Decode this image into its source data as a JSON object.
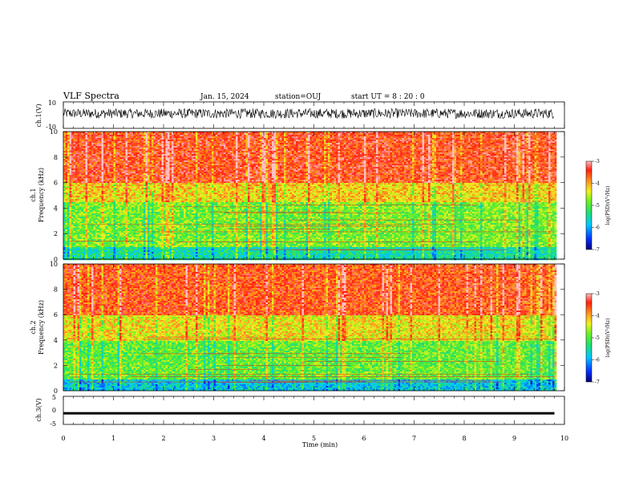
{
  "header": {
    "title": "VLF Spectra",
    "date": "Jan. 15, 2024",
    "station": "station=OUJ",
    "start": "start UT =  8 : 20 : 0"
  },
  "colors": {
    "scale": [
      "#00007a",
      "#0040ff",
      "#00d8ff",
      "#20e060",
      "#50ee30",
      "#a8f020",
      "#f0e020",
      "#ff9020",
      "#ff3010",
      "#ff8888"
    ]
  },
  "chart_data": [
    {
      "type": "line",
      "panel": "ch1-waveform",
      "ylabel": "ch.1(V)",
      "ylim": [
        -10,
        10
      ],
      "y_ticks": [
        "10",
        "-10"
      ],
      "x": [
        0,
        9.8
      ],
      "y_range_shown": [
        -2.5,
        5
      ],
      "color": "#000000"
    },
    {
      "type": "heatmap",
      "panel": "ch1-spectrogram",
      "ylabel_top": "ch.1",
      "ylabel": "Frequency (kHz)",
      "ylim": [
        0,
        10
      ],
      "y_ticks": [
        "0",
        "2",
        "4",
        "6",
        "8",
        "10"
      ],
      "xlim": [
        0,
        10
      ],
      "data_end_min": 9.8,
      "bands": [
        {
          "from_khz": 0,
          "to_khz": 1,
          "log_psd": -5.5
        },
        {
          "from_khz": 1,
          "to_khz": 4.5,
          "log_psd": -4.8
        },
        {
          "from_khz": 4.5,
          "to_khz": 6,
          "log_psd": -4.2
        },
        {
          "from_khz": 6,
          "to_khz": 10,
          "log_psd": -3.5
        }
      ]
    },
    {
      "type": "heatmap",
      "panel": "ch2-spectrogram",
      "ylabel_top": "ch.2",
      "ylabel": "Frequency (kHz)",
      "ylim": [
        0,
        10
      ],
      "y_ticks": [
        "0",
        "2",
        "4",
        "6",
        "8",
        "10"
      ],
      "xlim": [
        0,
        10
      ],
      "data_end_min": 9.8,
      "bands": [
        {
          "from_khz": 0,
          "to_khz": 1,
          "log_psd": -5.8
        },
        {
          "from_khz": 1,
          "to_khz": 4,
          "log_psd": -4.9
        },
        {
          "from_khz": 4,
          "to_khz": 6,
          "log_psd": -4.3
        },
        {
          "from_khz": 6,
          "to_khz": 10,
          "log_psd": -3.6
        }
      ]
    },
    {
      "type": "line",
      "panel": "ch3-waveform",
      "ylabel": "ch.3(V)",
      "ylim": [
        -5,
        5
      ],
      "y_ticks": [
        "5",
        "0",
        "-5"
      ],
      "x": [
        0,
        9.8
      ],
      "y_range_shown": [
        -1.1,
        -0.9
      ],
      "color": "#000000"
    }
  ],
  "xaxis": {
    "xlabel": "Time (min)",
    "xlim": [
      0,
      10
    ],
    "ticks": [
      "0",
      "1",
      "2",
      "3",
      "4",
      "5",
      "6",
      "7",
      "8",
      "9",
      "10"
    ]
  },
  "colorbar": {
    "label": "log(PSD)(V²/Hz)",
    "range": [
      -7,
      -3
    ],
    "ticks": [
      "-3",
      "-4",
      "-5",
      "-6",
      "-7"
    ]
  }
}
